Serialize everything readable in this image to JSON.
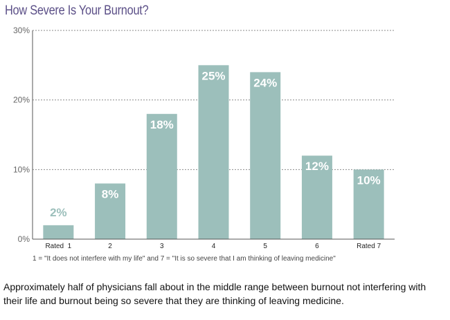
{
  "chart_data": {
    "type": "bar",
    "title": "How Severe Is Your Burnout?",
    "categories": [
      "Rated  1",
      "2",
      "3",
      "4",
      "5",
      "6",
      "Rated 7"
    ],
    "values": [
      2,
      8,
      18,
      25,
      24,
      12,
      10
    ],
    "data_labels": [
      "2%",
      "8%",
      "18%",
      "25%",
      "24%",
      "12%",
      "10%"
    ],
    "ylim": [
      0,
      30
    ],
    "yticks": [
      0,
      10,
      20,
      30
    ],
    "ytick_labels": [
      "0%",
      "10%",
      "20%",
      "30%"
    ],
    "grid": "dashed horizontal",
    "bar_color": "#9cbfbb",
    "label_color_inside": "#ffffff",
    "label_color_outside": "#9cbfbb",
    "footnote": "1 = \"It does not interfere with my life\" and 7 = \"It is so severe that I am thinking of leaving medicine\""
  },
  "caption": "Approximately half of physicians fall about in the middle range between burnout not interfering with their life and burnout being so severe that they are thinking of leaving medicine."
}
